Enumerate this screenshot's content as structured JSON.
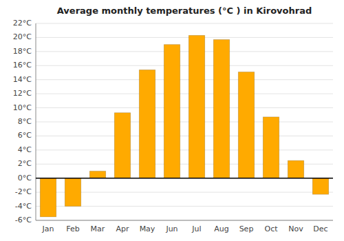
{
  "chart_data": {
    "type": "bar",
    "title": "Average monthly temperatures (°C ) in Kirovohrad",
    "categories": [
      "Jan",
      "Feb",
      "Mar",
      "Apr",
      "May",
      "Jun",
      "Jul",
      "Aug",
      "Sep",
      "Oct",
      "Nov",
      "Dec"
    ],
    "values": [
      -5.5,
      -4.0,
      1.0,
      9.3,
      15.4,
      19.0,
      20.3,
      19.7,
      15.1,
      8.7,
      2.5,
      -2.3
    ],
    "color": "#FFAA00",
    "ylim": [
      -6,
      22
    ],
    "yticks": [
      {
        "value": -6,
        "label": "-6°C"
      },
      {
        "value": -4,
        "label": "-4°C"
      },
      {
        "value": -2,
        "label": "-2°C"
      },
      {
        "value": 0,
        "label": "0°C"
      },
      {
        "value": 2,
        "label": "2°C"
      },
      {
        "value": 4,
        "label": "4°C"
      },
      {
        "value": 6,
        "label": "6°C"
      },
      {
        "value": 8,
        "label": "8°C"
      },
      {
        "value": 10,
        "label": "10°C"
      },
      {
        "value": 12,
        "label": "12°C"
      },
      {
        "value": 14,
        "label": "14°C"
      },
      {
        "value": 16,
        "label": "16°C"
      },
      {
        "value": 18,
        "label": "18°C"
      },
      {
        "value": 20,
        "label": "20°C"
      },
      {
        "value": 22,
        "label": "22°C"
      }
    ],
    "grid": true
  }
}
